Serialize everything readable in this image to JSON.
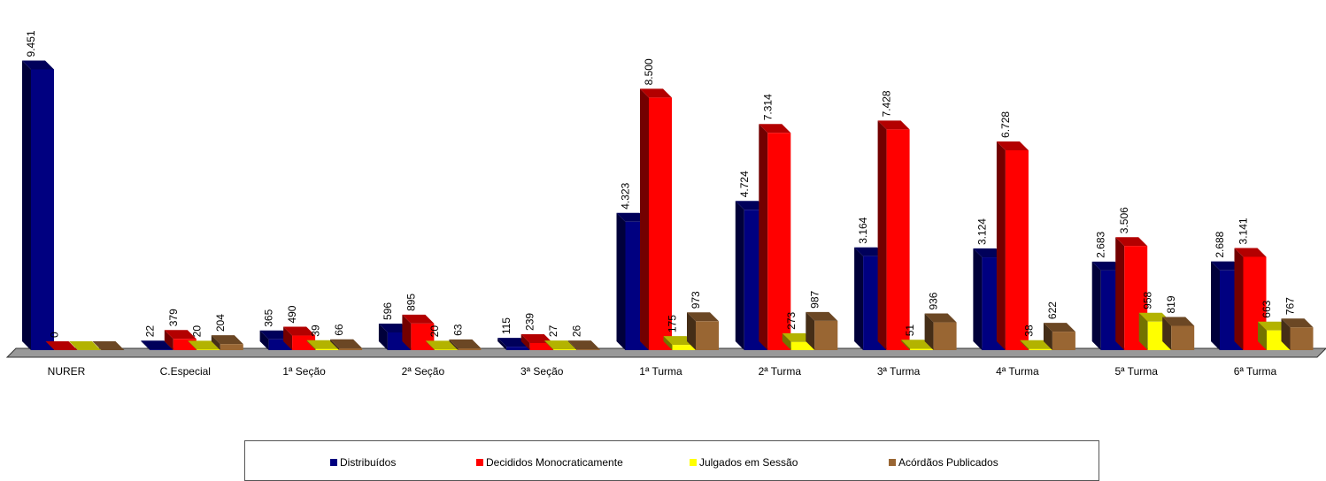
{
  "chart_data": {
    "type": "bar",
    "categories": [
      "NURER",
      "C.Especial",
      "1ª Seção",
      "2ª Seção",
      "3ª Seção",
      "1ª Turma",
      "2ª Turma",
      "3ª Turma",
      "4ª Turma",
      "5ª Turma",
      "6ª Turma"
    ],
    "series": [
      {
        "name": "Distribuídos",
        "color": "#000080",
        "values": [
          9451,
          22,
          365,
          596,
          115,
          4323,
          4724,
          3164,
          3124,
          2683,
          2688
        ],
        "labels": [
          "9.451",
          "22",
          "365",
          "596",
          "115",
          "4.323",
          "4.724",
          "3.164",
          "3.124",
          "2.683",
          "2.688"
        ]
      },
      {
        "name": "Decididos Monocraticamente",
        "color": "#ff0000",
        "values": [
          0,
          379,
          490,
          895,
          239,
          8500,
          7314,
          7428,
          6728,
          3506,
          3141
        ],
        "labels": [
          "0",
          "379",
          "490",
          "895",
          "239",
          "8.500",
          "7.314",
          "7.428",
          "6.728",
          "3.506",
          "3.141"
        ]
      },
      {
        "name": "Julgados em Sessão",
        "color": "#ffff00",
        "values": [
          0,
          20,
          39,
          20,
          27,
          175,
          273,
          51,
          38,
          958,
          663
        ],
        "labels": [
          "",
          "20",
          "39",
          "20",
          "27",
          "175",
          "273",
          "51",
          "38",
          "958",
          "663"
        ]
      },
      {
        "name": "Acórdãos Publicados",
        "color": "#996633",
        "values": [
          0,
          204,
          66,
          63,
          26,
          973,
          987,
          936,
          622,
          819,
          767
        ],
        "labels": [
          "",
          "204",
          "66",
          "63",
          "26",
          "973",
          "987",
          "936",
          "622",
          "819",
          "767"
        ]
      }
    ],
    "ylim": [
      0,
      10000
    ],
    "grid": false,
    "legend_position": "bottom"
  }
}
